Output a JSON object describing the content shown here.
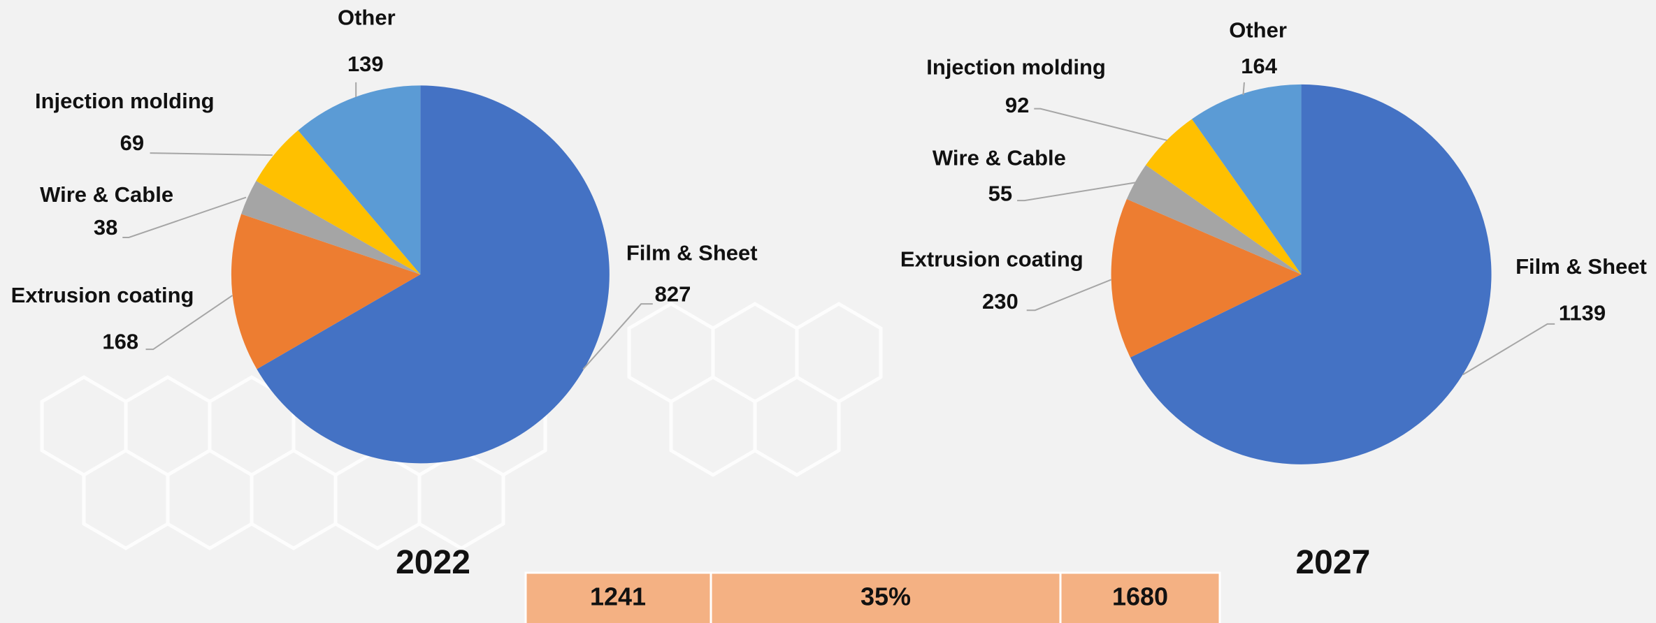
{
  "chart_data": [
    {
      "type": "pie",
      "title": "2022",
      "categories": [
        "Film & Sheet",
        "Extrusion coating",
        "Wire & Cable",
        "Injection molding",
        "Other"
      ],
      "values": [
        827,
        168,
        38,
        69,
        139
      ],
      "colors": [
        "#4472c4",
        "#ed7d31",
        "#a5a5a5",
        "#ffc000",
        "#5b9bd5"
      ]
    },
    {
      "type": "pie",
      "title": "2027",
      "categories": [
        "Film & Sheet",
        "Extrusion coating",
        "Wire & Cable",
        "Injection molding",
        "Other"
      ],
      "values": [
        1139,
        230,
        55,
        92,
        164
      ],
      "colors": [
        "#4472c4",
        "#ed7d31",
        "#a5a5a5",
        "#ffc000",
        "#5b9bd5"
      ]
    }
  ],
  "table": {
    "cells": [
      1241,
      "35%",
      1680
    ]
  }
}
